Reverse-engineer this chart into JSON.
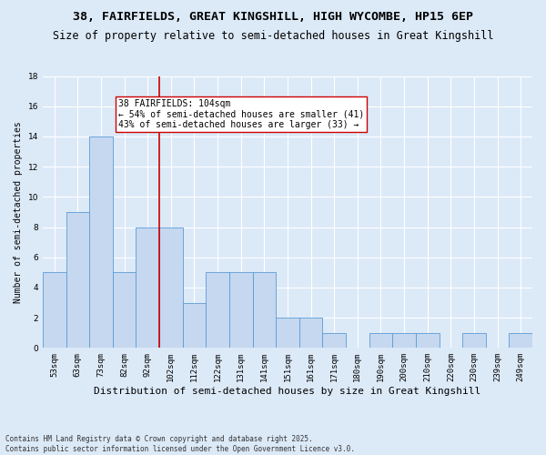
{
  "title": "38, FAIRFIELDS, GREAT KINGSHILL, HIGH WYCOMBE, HP15 6EP",
  "subtitle": "Size of property relative to semi-detached houses in Great Kingshill",
  "xlabel": "Distribution of semi-detached houses by size in Great Kingshill",
  "ylabel": "Number of semi-detached properties",
  "categories": [
    "53sqm",
    "63sqm",
    "73sqm",
    "82sqm",
    "92sqm",
    "102sqm",
    "112sqm",
    "122sqm",
    "131sqm",
    "141sqm",
    "151sqm",
    "161sqm",
    "171sqm",
    "180sqm",
    "190sqm",
    "200sqm",
    "210sqm",
    "220sqm",
    "230sqm",
    "239sqm",
    "249sqm"
  ],
  "values": [
    5,
    9,
    14,
    5,
    8,
    8,
    3,
    5,
    5,
    5,
    2,
    2,
    1,
    0,
    1,
    1,
    1,
    0,
    1,
    0,
    1
  ],
  "bar_color": "#c5d8f0",
  "bar_edge_color": "#5b9bd5",
  "background_color": "#dce9f7",
  "ylim": [
    0,
    18
  ],
  "yticks": [
    0,
    2,
    4,
    6,
    8,
    10,
    12,
    14,
    16,
    18
  ],
  "property_label": "38 FAIRFIELDS: 104sqm",
  "annotation_line1": "← 54% of semi-detached houses are smaller (41)",
  "annotation_line2": "43% of semi-detached houses are larger (33) →",
  "annotation_box_color": "#ffffff",
  "annotation_box_edge": "#cc0000",
  "vline_color": "#cc0000",
  "footer": "Contains HM Land Registry data © Crown copyright and database right 2025.\nContains public sector information licensed under the Open Government Licence v3.0.",
  "title_fontsize": 9.5,
  "subtitle_fontsize": 8.5,
  "xlabel_fontsize": 8,
  "ylabel_fontsize": 7,
  "tick_fontsize": 6.5,
  "annotation_fontsize": 7,
  "footer_fontsize": 5.5
}
